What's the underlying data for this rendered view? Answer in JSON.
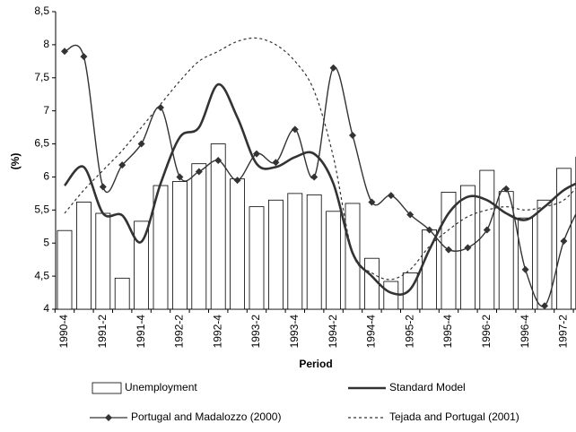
{
  "chart_data": {
    "type": "bar_line",
    "x_label": "Period",
    "y_label": "(%)",
    "categories": [
      "1990-4",
      null,
      "1991-2",
      null,
      "1991-4",
      null,
      "1992-2",
      null,
      "1992-4",
      null,
      "1993-2",
      null,
      "1993-4",
      null,
      "1994-2",
      null,
      "1994-4",
      null,
      "1995-2",
      null,
      "1995-4",
      null,
      "1996-2",
      null,
      "1996-4",
      null,
      "1997-2",
      null
    ],
    "ylim": [
      4,
      8.5
    ],
    "yticks": [
      4,
      {
        "value": 4.5,
        "label": "4,5"
      },
      5,
      {
        "value": 5.5,
        "label": "5,5"
      },
      6,
      {
        "value": 6.5,
        "label": "6,5"
      },
      7,
      {
        "value": 7.5,
        "label": "7,5"
      },
      8,
      {
        "value": 8.5,
        "label": "8,5"
      }
    ],
    "series": [
      {
        "name": "Unemployment",
        "kind": "bar",
        "color": "#ffffff",
        "values": [
          5.19,
          5.62,
          5.45,
          4.47,
          5.33,
          5.87,
          5.93,
          6.2,
          6.5,
          5.97,
          5.55,
          5.65,
          5.75,
          5.73,
          5.48,
          5.6,
          4.77,
          4.42,
          4.55,
          5.2,
          5.77,
          5.87,
          6.1,
          5.78,
          5.38,
          5.65,
          6.13,
          6.3
        ]
      },
      {
        "name": "Standard Model",
        "kind": "line",
        "color": "#333333",
        "values": [
          5.87,
          6.15,
          5.45,
          5.42,
          5.02,
          5.9,
          6.6,
          6.75,
          7.4,
          6.9,
          6.2,
          6.15,
          6.3,
          6.35,
          5.9,
          4.85,
          4.5,
          4.25,
          4.3,
          4.9,
          5.45,
          5.7,
          5.65,
          5.45,
          5.35,
          5.55,
          5.8,
          5.95
        ]
      },
      {
        "name": "Portugal and Madalozzo (2000)",
        "kind": "marker-line",
        "color": "#333333",
        "values": [
          7.9,
          7.82,
          5.85,
          6.18,
          6.5,
          7.05,
          6.0,
          6.08,
          6.25,
          5.95,
          6.35,
          6.22,
          6.72,
          6.0,
          7.65,
          6.63,
          5.62,
          5.72,
          5.43,
          5.2,
          4.9,
          4.93,
          5.2,
          5.82,
          4.6,
          4.05,
          5.03,
          5.65
        ]
      },
      {
        "name": "Tejada and Portugal (2001)",
        "kind": "dashed-line",
        "color": "#333333",
        "values": [
          5.45,
          5.8,
          6.1,
          6.4,
          6.75,
          7.1,
          7.45,
          7.75,
          7.9,
          8.05,
          8.1,
          8.0,
          7.75,
          7.3,
          6.3,
          4.85,
          4.55,
          4.45,
          4.6,
          4.95,
          5.2,
          5.4,
          5.5,
          5.55,
          5.5,
          5.55,
          5.65,
          5.95
        ]
      }
    ]
  }
}
